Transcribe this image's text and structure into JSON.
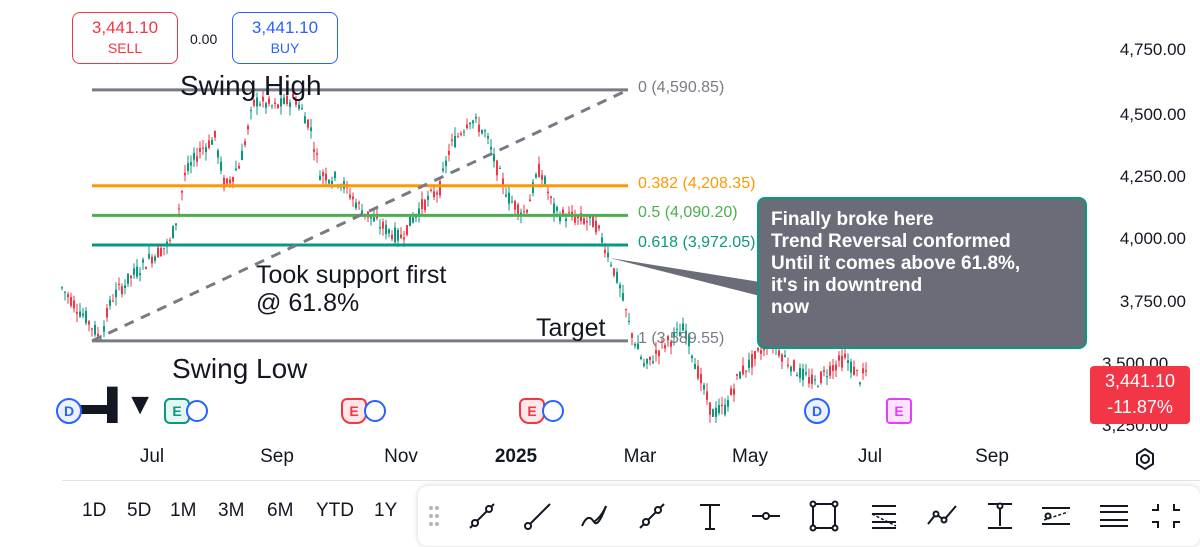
{
  "trade": {
    "sell_price": "3,441.10",
    "sell_label": "SELL",
    "spread": "0.00",
    "buy_price": "3,441.10",
    "buy_label": "BUY"
  },
  "y_axis": [
    "4,750.00",
    "4,500.00",
    "4,250.00",
    "4,000.00",
    "3,750.00",
    "3,500.00",
    "3,250.00"
  ],
  "x_axis": [
    "Jul",
    "Sep",
    "Nov",
    "2025",
    "Mar",
    "May",
    "Jul",
    "Sep"
  ],
  "current_price": {
    "value": "3,441.10",
    "change": "-11.87%",
    "color": "#f23645"
  },
  "fib_levels": [
    {
      "label": "0 (4,590.85)",
      "price": 4590.85,
      "color": "#787b86"
    },
    {
      "label": "0.382 (4,208.35)",
      "price": 4208.35,
      "color": "#ff9800"
    },
    {
      "label": "0.5 (4,090.20)",
      "price": 4090.2,
      "color": "#4caf50"
    },
    {
      "label": "0.618 (3,972.05)",
      "price": 3972.05,
      "color": "#089981"
    },
    {
      "label": "1 (3,589.55)",
      "price": 3589.55,
      "color": "#787b86"
    }
  ],
  "annotations": {
    "swing_high": "Swing High",
    "swing_low": "Swing Low",
    "support_line1": "Took support first",
    "support_line2": "@ 61.8%",
    "target": "Target",
    "callout": [
      "Finally broke here",
      "Trend Reversal conformed",
      "Until it comes above 61.8%,",
      "it's in downtrend",
      "now"
    ]
  },
  "events": [
    "D",
    "E",
    "E",
    "E",
    "D",
    "E"
  ],
  "ranges": [
    "1D",
    "5D",
    "1M",
    "3M",
    "6M",
    "YTD",
    "1Y"
  ],
  "tools": [
    "drag-handle-icon",
    "trend-line-icon",
    "ray-icon",
    "brush-icon",
    "extended-line-icon",
    "text-icon",
    "horizontal-line-icon",
    "rectangle-icon",
    "fib-retracement-icon",
    "path-icon",
    "price-range-icon",
    "parallel-channel-icon",
    "menu-icon",
    "fullscreen-exit-icon"
  ],
  "colors": {
    "up": "#089981",
    "down": "#f23645"
  }
}
